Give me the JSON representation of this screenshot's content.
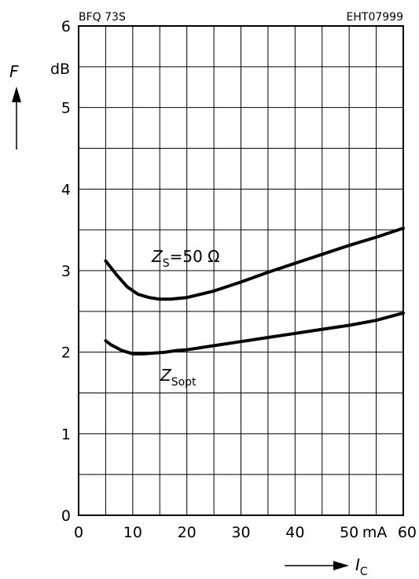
{
  "header": {
    "part_number": "BFQ 73S",
    "figure_code": "EHT07999"
  },
  "chart_data": {
    "type": "line",
    "xlabel": "I",
    "xlabel_sub": "C",
    "x_unit": "mA",
    "ylabel": "F",
    "y_unit": "dB",
    "xlim": [
      0,
      60
    ],
    "ylim": [
      0,
      6
    ],
    "x_ticks": [
      0,
      10,
      20,
      30,
      40,
      50,
      60
    ],
    "y_ticks": [
      0,
      1,
      2,
      3,
      4,
      5,
      6
    ],
    "grid": true,
    "series": [
      {
        "name": "Z_S = 50 Ω",
        "label_main": "Z",
        "label_sub": "S",
        "label_rest": "=50 Ω",
        "x": [
          5,
          7,
          9,
          11,
          13,
          15,
          17,
          20,
          25,
          30,
          35,
          40,
          45,
          50,
          55,
          60
        ],
        "y": [
          3.12,
          2.95,
          2.8,
          2.71,
          2.67,
          2.65,
          2.65,
          2.67,
          2.75,
          2.86,
          2.98,
          3.09,
          3.2,
          3.31,
          3.41,
          3.52
        ]
      },
      {
        "name": "Z_Sopt",
        "label_main": "Z",
        "label_sub": "Sopt",
        "label_rest": "",
        "x": [
          5,
          6,
          8,
          10,
          12,
          14,
          16,
          18,
          20,
          25,
          30,
          35,
          40,
          45,
          50,
          55,
          60
        ],
        "y": [
          2.14,
          2.09,
          2.02,
          1.98,
          1.98,
          1.99,
          2.0,
          2.02,
          2.03,
          2.08,
          2.13,
          2.18,
          2.23,
          2.28,
          2.33,
          2.39,
          2.48
        ]
      }
    ]
  }
}
